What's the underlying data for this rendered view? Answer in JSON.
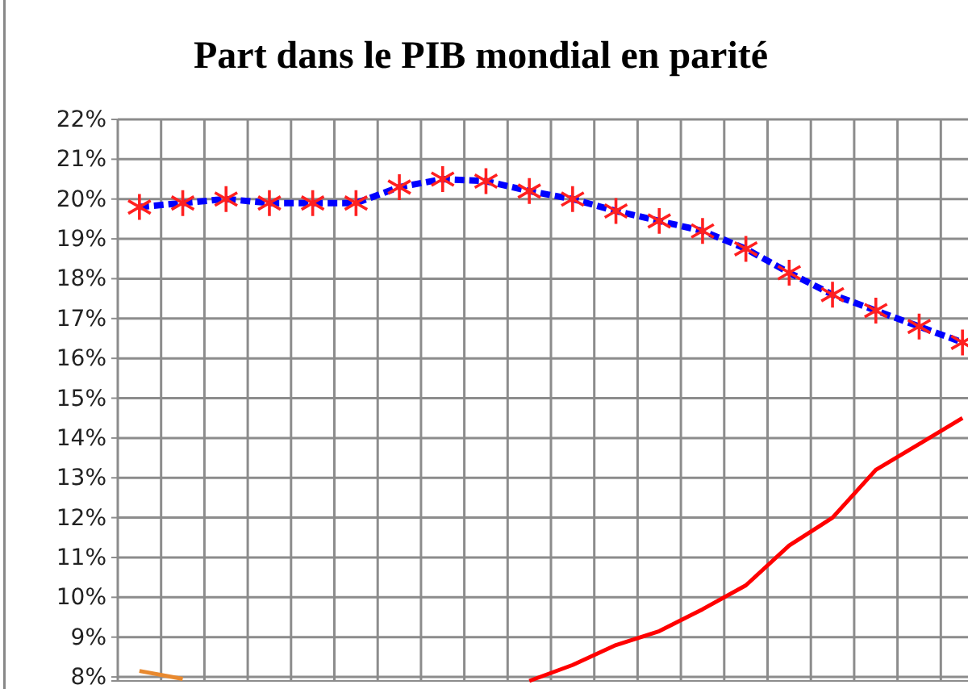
{
  "chart_data": {
    "type": "line",
    "title": "Part dans le PIB mondial en parité",
    "categories": [
      null,
      null,
      null,
      null,
      null,
      null,
      null,
      null,
      null,
      null,
      null,
      null,
      null,
      null,
      null,
      null,
      null,
      null,
      null,
      null
    ],
    "series": [
      {
        "color": "#0000ff",
        "line_style": "dashed",
        "marker": "cross",
        "values": [
          19.8,
          19.9,
          20.0,
          19.9,
          19.9,
          19.9,
          20.3,
          20.5,
          20.45,
          20.2,
          20.0,
          19.7,
          19.45,
          19.2,
          18.75,
          18.15,
          17.6,
          17.2,
          16.8,
          16.4
        ]
      },
      {
        "color": "#ff0000",
        "line_style": "solid",
        "marker": "none",
        "values": [
          null,
          null,
          null,
          null,
          null,
          null,
          null,
          null,
          null,
          7.9,
          8.3,
          8.8,
          9.15,
          9.7,
          10.3,
          11.3,
          12.0,
          13.2,
          13.85,
          14.5
        ]
      },
      {
        "color": "#e8892f",
        "line_style": "solid",
        "marker": "none",
        "values": [
          8.15,
          7.95,
          null,
          null,
          null,
          null,
          null,
          null,
          null,
          null,
          null,
          null,
          null,
          null,
          null,
          null,
          null,
          null,
          null,
          null
        ]
      }
    ],
    "ylim": [
      7.9,
      22
    ],
    "yticks": [
      {
        "value": 8,
        "label": "8%"
      },
      {
        "value": 9,
        "label": "9%"
      },
      {
        "value": 10,
        "label": "10%"
      },
      {
        "value": 11,
        "label": "11%"
      },
      {
        "value": 12,
        "label": "12%"
      },
      {
        "value": 13,
        "label": "13%"
      },
      {
        "value": 14,
        "label": "14%"
      },
      {
        "value": 15,
        "label": "15%"
      },
      {
        "value": 16,
        "label": "16%"
      },
      {
        "value": 17,
        "label": "17%"
      },
      {
        "value": 18,
        "label": "18%"
      },
      {
        "value": 19,
        "label": "19%"
      },
      {
        "value": 20,
        "label": "20%"
      },
      {
        "value": 21,
        "label": "21%"
      },
      {
        "value": 22,
        "label": "22%"
      }
    ],
    "grid": true,
    "tick_labels": "y"
  }
}
